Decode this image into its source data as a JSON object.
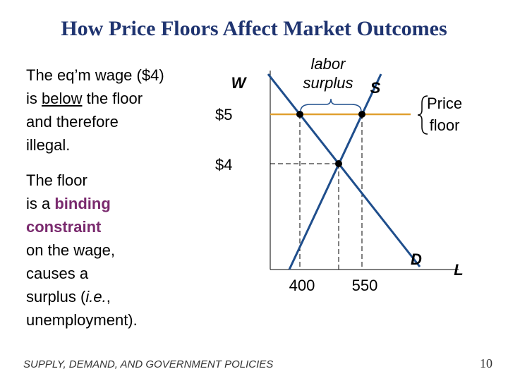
{
  "title": "How Price Floors Affect Market Outcomes",
  "paragraphs": [
    [
      [
        "The eq’m wage ($4)"
      ],
      [
        "is ",
        "below",
        " the floor"
      ],
      [
        "and therefore"
      ],
      [
        "illegal."
      ]
    ],
    [
      [
        "The floor"
      ],
      [
        "is a ",
        "binding"
      ],
      [
        "constraint"
      ],
      [
        "on the wage,"
      ],
      [
        "causes a"
      ],
      [
        "surplus (",
        "i.e.",
        ", "
      ],
      [
        "unemployment)."
      ]
    ]
  ],
  "diagram": {
    "y_label": "W",
    "x_label": "L",
    "supply_label": "S",
    "demand_label": "D",
    "floor_price": "$5",
    "equilibrium_price": "$4",
    "quantity_demanded": "400",
    "quantity_supplied": "550",
    "surplus_label": [
      "labor",
      "surplus"
    ],
    "floor_label": [
      "Price",
      "floor"
    ]
  },
  "footer": "SUPPLY, DEMAND, AND GOVERNMENT POLICIES",
  "page_number": "10"
}
